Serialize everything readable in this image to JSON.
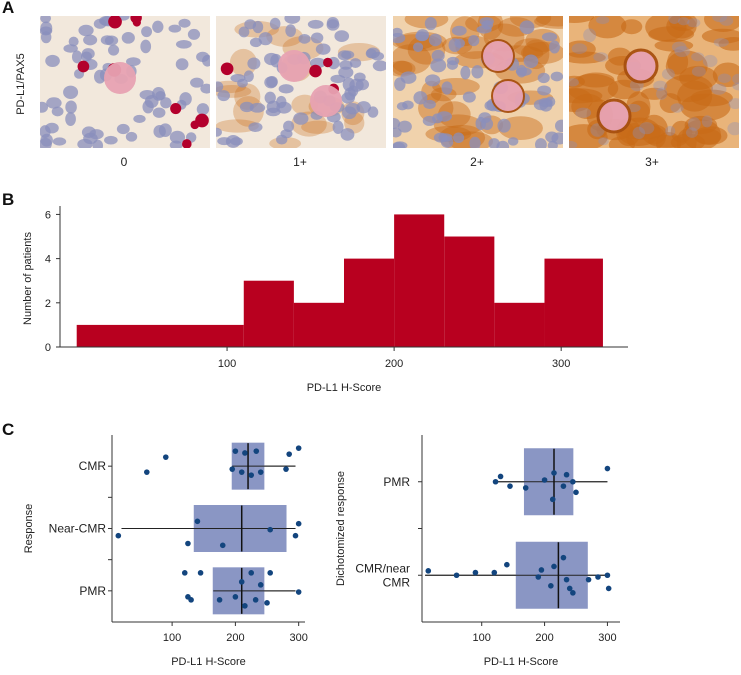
{
  "panel_a": {
    "letter": "A",
    "stain_label": "PD-L1/PAX5",
    "tiles": [
      {
        "label": "0",
        "grade": 0
      },
      {
        "label": "1+",
        "grade": 1
      },
      {
        "label": "2+",
        "grade": 2
      },
      {
        "label": "3+",
        "grade": 3
      }
    ]
  },
  "chart_data": [
    {
      "id": "B",
      "type": "bar",
      "subtype": "histogram",
      "letter": "B",
      "title": "",
      "xlabel": "PD-L1 H-Score",
      "ylabel": "Number of patients",
      "xticks": [
        100,
        200,
        300
      ],
      "yticks": [
        0,
        2,
        4,
        6
      ],
      "xlim": [
        0,
        340
      ],
      "ylim": [
        0,
        6.2
      ],
      "bins": [
        {
          "x0": 10,
          "x1": 110,
          "count": 1
        },
        {
          "x0": 110,
          "x1": 140,
          "count": 3
        },
        {
          "x0": 140,
          "x1": 170,
          "count": 2
        },
        {
          "x0": 170,
          "x1": 200,
          "count": 4
        },
        {
          "x0": 200,
          "x1": 230,
          "count": 6
        },
        {
          "x0": 230,
          "x1": 260,
          "count": 5
        },
        {
          "x0": 260,
          "x1": 290,
          "count": 2
        },
        {
          "x0": 290,
          "x1": 325,
          "count": 4
        }
      ],
      "color": "#b8001f"
    },
    {
      "id": "C1",
      "type": "scatter",
      "subtype": "box-and-strip",
      "letter": "C",
      "xlabel": "PD-L1 H-Score",
      "ylabel": "Response",
      "xticks": [
        100,
        200,
        300
      ],
      "xlim": [
        5,
        310
      ],
      "groups": [
        {
          "name": "CMR",
          "box": {
            "whisker_low": 195,
            "q1": 195,
            "median": 220,
            "q3": 245,
            "whisker_high": 295
          },
          "points": [
            {
              "x": 60,
              "j": 0.1
            },
            {
              "x": 90,
              "j": -0.15
            },
            {
              "x": 195,
              "j": 0.05
            },
            {
              "x": 200,
              "j": -0.25
            },
            {
              "x": 210,
              "j": 0.1
            },
            {
              "x": 215,
              "j": -0.22
            },
            {
              "x": 225,
              "j": 0.15
            },
            {
              "x": 233,
              "j": -0.25
            },
            {
              "x": 240,
              "j": 0.1
            },
            {
              "x": 280,
              "j": 0.05
            },
            {
              "x": 285,
              "j": -0.2
            },
            {
              "x": 300,
              "j": -0.3
            }
          ]
        },
        {
          "name": "Near-CMR",
          "box": {
            "whisker_low": 20,
            "q1": 135,
            "median": 210,
            "q3": 280,
            "whisker_high": 295
          },
          "points": [
            {
              "x": 15,
              "j": 0.12
            },
            {
              "x": 125,
              "j": 0.25
            },
            {
              "x": 140,
              "j": -0.12
            },
            {
              "x": 180,
              "j": 0.28
            },
            {
              "x": 255,
              "j": 0.02
            },
            {
              "x": 295,
              "j": 0.12
            },
            {
              "x": 300,
              "j": -0.08
            }
          ]
        },
        {
          "name": "PMR",
          "box": {
            "whisker_low": 165,
            "q1": 165,
            "median": 210,
            "q3": 245,
            "whisker_high": 295
          },
          "points": [
            {
              "x": 120,
              "j": -0.3
            },
            {
              "x": 125,
              "j": 0.1
            },
            {
              "x": 130,
              "j": 0.15
            },
            {
              "x": 145,
              "j": -0.3
            },
            {
              "x": 175,
              "j": 0.15
            },
            {
              "x": 200,
              "j": 0.1
            },
            {
              "x": 210,
              "j": -0.15
            },
            {
              "x": 215,
              "j": 0.25
            },
            {
              "x": 225,
              "j": -0.3
            },
            {
              "x": 232,
              "j": 0.15
            },
            {
              "x": 240,
              "j": -0.1
            },
            {
              "x": 250,
              "j": 0.2
            },
            {
              "x": 255,
              "j": -0.3
            },
            {
              "x": 300,
              "j": 0.02
            }
          ]
        }
      ]
    },
    {
      "id": "C2",
      "type": "scatter",
      "subtype": "box-and-strip",
      "letter": "",
      "xlabel": "PD-L1 H-Score",
      "ylabel": "Dichotomized response",
      "xticks": [
        100,
        200,
        300
      ],
      "xlim": [
        5,
        320
      ],
      "groups": [
        {
          "name": "PMR",
          "label_lines": [
            "PMR"
          ],
          "box": {
            "whisker_low": 120,
            "q1": 168,
            "median": 215,
            "q3": 245,
            "whisker_high": 300
          },
          "points": [
            {
              "x": 122,
              "j": 0.0
            },
            {
              "x": 130,
              "j": -0.06
            },
            {
              "x": 145,
              "j": 0.05
            },
            {
              "x": 170,
              "j": 0.07
            },
            {
              "x": 200,
              "j": -0.02
            },
            {
              "x": 213,
              "j": 0.2
            },
            {
              "x": 215,
              "j": -0.1
            },
            {
              "x": 230,
              "j": 0.05
            },
            {
              "x": 235,
              "j": -0.08
            },
            {
              "x": 245,
              "j": 0.0
            },
            {
              "x": 250,
              "j": 0.12
            },
            {
              "x": 300,
              "j": -0.15
            }
          ]
        },
        {
          "name": "CMR/near CMR",
          "label_lines": [
            "CMR/near",
            "CMR"
          ],
          "box": {
            "whisker_low": 10,
            "q1": 155,
            "median": 222,
            "q3": 268,
            "whisker_high": 300
          },
          "points": [
            {
              "x": 15,
              "j": -0.05
            },
            {
              "x": 60,
              "j": 0.0
            },
            {
              "x": 90,
              "j": -0.03
            },
            {
              "x": 120,
              "j": -0.03
            },
            {
              "x": 140,
              "j": -0.12
            },
            {
              "x": 190,
              "j": 0.02
            },
            {
              "x": 195,
              "j": -0.06
            },
            {
              "x": 210,
              "j": 0.12
            },
            {
              "x": 215,
              "j": -0.1
            },
            {
              "x": 230,
              "j": -0.2
            },
            {
              "x": 235,
              "j": 0.05
            },
            {
              "x": 240,
              "j": 0.15
            },
            {
              "x": 245,
              "j": 0.2
            },
            {
              "x": 270,
              "j": 0.05
            },
            {
              "x": 285,
              "j": 0.02
            },
            {
              "x": 300,
              "j": 0.0
            },
            {
              "x": 302,
              "j": 0.15
            }
          ]
        }
      ]
    }
  ],
  "colors": {
    "bar": "#b8001f",
    "box_fill": "#8a96c4",
    "point": "#13457e",
    "axis": "#333333",
    "h_bg": "#f2e8dc",
    "h_blue": "#8a8fbc",
    "h_red": "#b3002c",
    "h_pink": "#e7a2b2",
    "h_brown": "#c86a17"
  }
}
